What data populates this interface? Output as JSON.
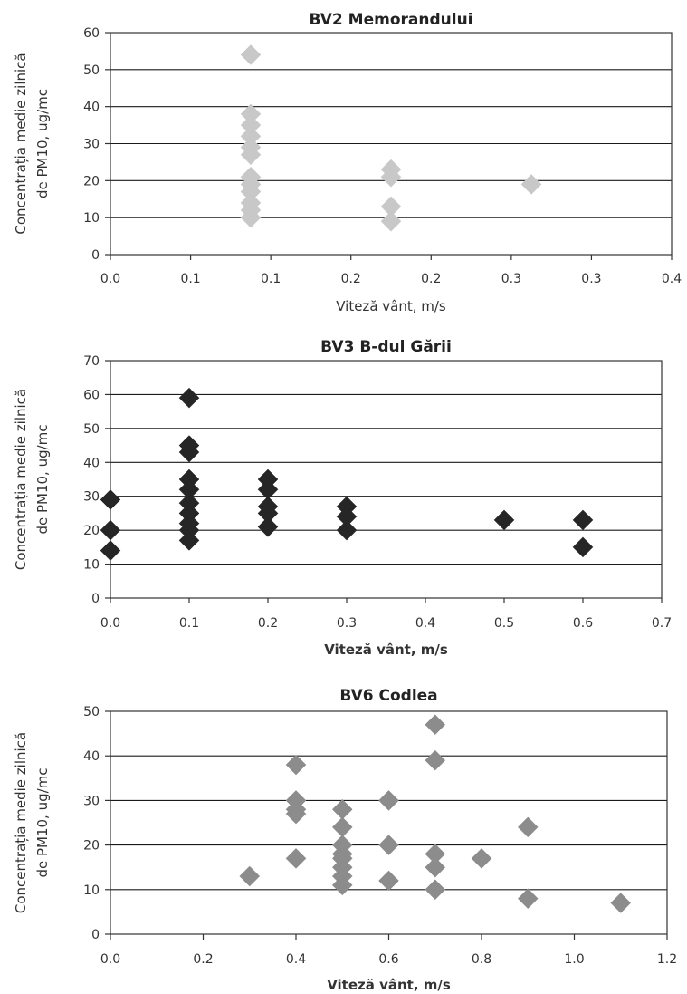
{
  "chart_data": [
    {
      "type": "scatter",
      "title": "BV2 Memorandului",
      "xlabel": "Viteză vânt, m/s",
      "ylabel": [
        "Concentrația medie zilnică",
        "de PM10, ug/mc"
      ],
      "xlim": [
        0,
        0.4
      ],
      "ylim": [
        0,
        60
      ],
      "x_ticks": [
        "0.0",
        "0.1",
        "0.1",
        "0.2",
        "0.2",
        "0.3",
        "0.3",
        "0.4"
      ],
      "y_ticks": [
        "0",
        "10",
        "20",
        "30",
        "40",
        "50",
        "60"
      ],
      "xlabel_bold": false,
      "marker": "diamond",
      "color": "#c8c8c8",
      "points": [
        {
          "x": 0.1,
          "y": 54
        },
        {
          "x": 0.1,
          "y": 38
        },
        {
          "x": 0.1,
          "y": 35
        },
        {
          "x": 0.1,
          "y": 32
        },
        {
          "x": 0.1,
          "y": 29
        },
        {
          "x": 0.1,
          "y": 27
        },
        {
          "x": 0.1,
          "y": 21
        },
        {
          "x": 0.1,
          "y": 19
        },
        {
          "x": 0.1,
          "y": 17
        },
        {
          "x": 0.1,
          "y": 14
        },
        {
          "x": 0.1,
          "y": 12
        },
        {
          "x": 0.1,
          "y": 10
        },
        {
          "x": 0.2,
          "y": 23
        },
        {
          "x": 0.2,
          "y": 21
        },
        {
          "x": 0.2,
          "y": 13
        },
        {
          "x": 0.2,
          "y": 9
        },
        {
          "x": 0.3,
          "y": 19
        }
      ]
    },
    {
      "type": "scatter",
      "title": "BV3 B-dul Gării",
      "xlabel": "Viteză vânt, m/s",
      "ylabel": [
        "Concentrația medie zilnică",
        "de PM10, ug/mc"
      ],
      "xlim": [
        0,
        0.7
      ],
      "ylim": [
        0,
        70
      ],
      "x_ticks": [
        "0.0",
        "0.1",
        "0.2",
        "0.3",
        "0.4",
        "0.5",
        "0.6",
        "0.7"
      ],
      "y_ticks": [
        "0",
        "10",
        "20",
        "30",
        "40",
        "50",
        "60",
        "70"
      ],
      "xlabel_bold": true,
      "marker": "diamond",
      "color": "#262626",
      "points": [
        {
          "x": 0.0,
          "y": 29
        },
        {
          "x": 0.0,
          "y": 20
        },
        {
          "x": 0.0,
          "y": 14
        },
        {
          "x": 0.1,
          "y": 59
        },
        {
          "x": 0.1,
          "y": 45
        },
        {
          "x": 0.1,
          "y": 43
        },
        {
          "x": 0.1,
          "y": 35
        },
        {
          "x": 0.1,
          "y": 32
        },
        {
          "x": 0.1,
          "y": 28
        },
        {
          "x": 0.1,
          "y": 25
        },
        {
          "x": 0.1,
          "y": 22
        },
        {
          "x": 0.1,
          "y": 20
        },
        {
          "x": 0.1,
          "y": 17
        },
        {
          "x": 0.2,
          "y": 35
        },
        {
          "x": 0.2,
          "y": 32
        },
        {
          "x": 0.2,
          "y": 27
        },
        {
          "x": 0.2,
          "y": 25
        },
        {
          "x": 0.2,
          "y": 21
        },
        {
          "x": 0.3,
          "y": 27
        },
        {
          "x": 0.3,
          "y": 24
        },
        {
          "x": 0.3,
          "y": 20
        },
        {
          "x": 0.5,
          "y": 23
        },
        {
          "x": 0.6,
          "y": 23
        },
        {
          "x": 0.6,
          "y": 15
        }
      ]
    },
    {
      "type": "scatter",
      "title": "BV6 Codlea",
      "xlabel": "Viteză vânt, m/s",
      "ylabel": [
        "Concentrația medie zilnică",
        "de PM10, ug/mc"
      ],
      "xlim": [
        0,
        1.2
      ],
      "ylim": [
        0,
        50
      ],
      "x_ticks": [
        "0.0",
        "0.2",
        "0.4",
        "0.6",
        "0.8",
        "1.0",
        "1.2"
      ],
      "y_ticks": [
        "0",
        "10",
        "20",
        "30",
        "40",
        "50"
      ],
      "xlabel_bold": true,
      "marker": "diamond",
      "color": "#8c8c8c",
      "points": [
        {
          "x": 0.3,
          "y": 13
        },
        {
          "x": 0.4,
          "y": 38
        },
        {
          "x": 0.4,
          "y": 30
        },
        {
          "x": 0.4,
          "y": 28
        },
        {
          "x": 0.4,
          "y": 27
        },
        {
          "x": 0.4,
          "y": 17
        },
        {
          "x": 0.5,
          "y": 28
        },
        {
          "x": 0.5,
          "y": 24
        },
        {
          "x": 0.5,
          "y": 20
        },
        {
          "x": 0.5,
          "y": 18
        },
        {
          "x": 0.5,
          "y": 17
        },
        {
          "x": 0.5,
          "y": 15
        },
        {
          "x": 0.5,
          "y": 13
        },
        {
          "x": 0.5,
          "y": 11
        },
        {
          "x": 0.6,
          "y": 30
        },
        {
          "x": 0.6,
          "y": 20
        },
        {
          "x": 0.6,
          "y": 12
        },
        {
          "x": 0.7,
          "y": 47
        },
        {
          "x": 0.7,
          "y": 39
        },
        {
          "x": 0.7,
          "y": 18
        },
        {
          "x": 0.7,
          "y": 15
        },
        {
          "x": 0.7,
          "y": 10
        },
        {
          "x": 0.8,
          "y": 17
        },
        {
          "x": 0.9,
          "y": 24
        },
        {
          "x": 0.9,
          "y": 8
        },
        {
          "x": 1.1,
          "y": 7
        }
      ]
    }
  ]
}
